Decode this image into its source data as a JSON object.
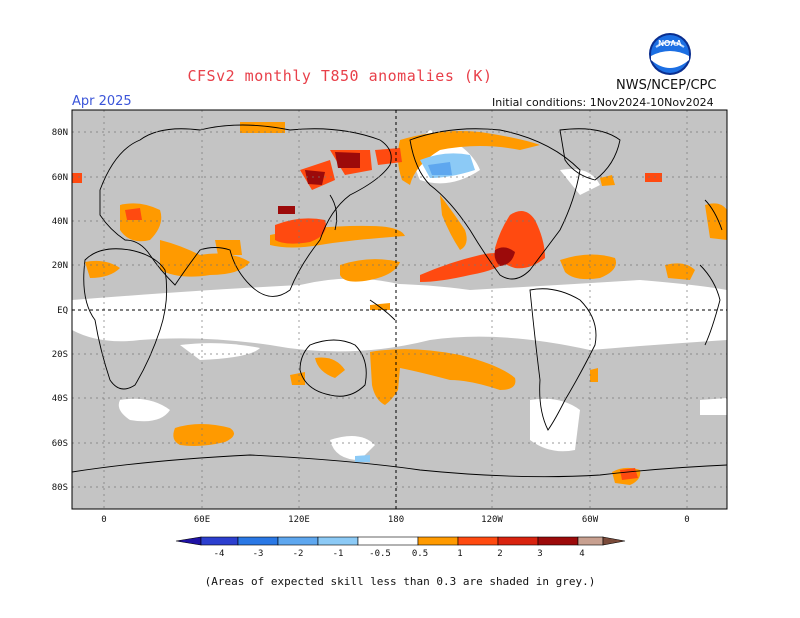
{
  "header": {
    "title": "CFSv2 monthly T850 anomalies (K)",
    "agency": "NWS/NCEP/CPC",
    "month": "Apr 2025",
    "initial_conditions": "Initial conditions: 1Nov2024-10Nov2024"
  },
  "logo": {
    "text": "NOAA",
    "icon": "noaa-logo"
  },
  "map": {
    "lat_labels": [
      "80N",
      "60N",
      "40N",
      "20N",
      "EQ",
      "20S",
      "40S",
      "60S",
      "80S"
    ],
    "lon_labels": [
      "0",
      "60E",
      "120E",
      "180",
      "120W",
      "60W",
      "0"
    ],
    "colors": {
      "grey_low_skill": "#c4c4c4",
      "ocean_white": "#ffffff"
    }
  },
  "legend": {
    "ticks": [
      "-4",
      "-3",
      "-2",
      "-1",
      "-0.5",
      "0.5",
      "1",
      "2",
      "3",
      "4"
    ],
    "colors": [
      "#1f12a5",
      "#2c3fcf",
      "#2a78e5",
      "#5ea7ef",
      "#8ccaf6",
      "#ffffff",
      "#ff9a00",
      "#ff4a10",
      "#d9230f",
      "#9c0a0a",
      "#c8a090",
      "#7a4a3a"
    ]
  },
  "footer": {
    "note": "(Areas of expected skill less than 0.3 are shaded in grey.)"
  }
}
